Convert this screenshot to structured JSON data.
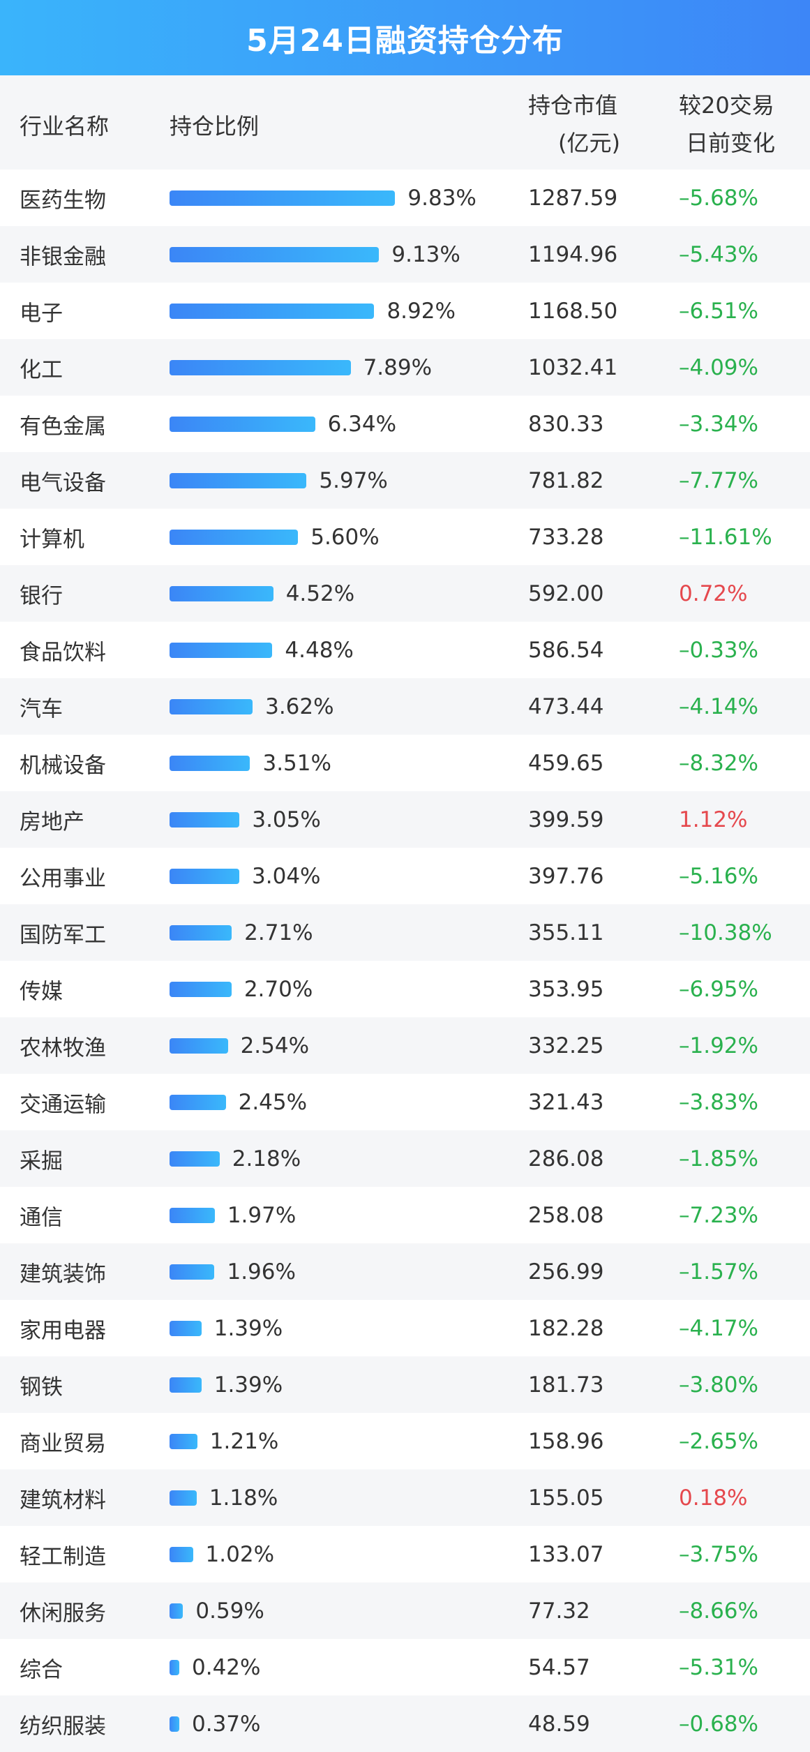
{
  "title": "5月24日融资持仓分布",
  "headers": {
    "name": "行业名称",
    "ratio": "持仓比例",
    "value_l1": "持仓市值",
    "value_l2": "(亿元)",
    "change_l1": "较20交易",
    "change_l2": "日前变化"
  },
  "colors": {
    "bar_start": "#3b86f6",
    "bar_end": "#3ab8fb",
    "negative": "#2ab14e",
    "positive": "#e5484d"
  },
  "rows": [
    {
      "name": "医药生物",
      "ratio": 9.83,
      "ratio_label": "9.83%",
      "value": "1287.59",
      "change": "–5.68%"
    },
    {
      "name": "非银金融",
      "ratio": 9.13,
      "ratio_label": "9.13%",
      "value": "1194.96",
      "change": "–5.43%"
    },
    {
      "name": "电子",
      "ratio": 8.92,
      "ratio_label": "8.92%",
      "value": "1168.50",
      "change": "–6.51%"
    },
    {
      "name": "化工",
      "ratio": 7.89,
      "ratio_label": "7.89%",
      "value": "1032.41",
      "change": "–4.09%"
    },
    {
      "name": "有色金属",
      "ratio": 6.34,
      "ratio_label": "6.34%",
      "value": "830.33",
      "change": "–3.34%"
    },
    {
      "name": "电气设备",
      "ratio": 5.97,
      "ratio_label": "5.97%",
      "value": "781.82",
      "change": "–7.77%"
    },
    {
      "name": "计算机",
      "ratio": 5.6,
      "ratio_label": "5.60%",
      "value": "733.28",
      "change": "–11.61%"
    },
    {
      "name": "银行",
      "ratio": 4.52,
      "ratio_label": "4.52%",
      "value": "592.00",
      "change": "0.72%"
    },
    {
      "name": "食品饮料",
      "ratio": 4.48,
      "ratio_label": "4.48%",
      "value": "586.54",
      "change": "–0.33%"
    },
    {
      "name": "汽车",
      "ratio": 3.62,
      "ratio_label": "3.62%",
      "value": "473.44",
      "change": "–4.14%"
    },
    {
      "name": "机械设备",
      "ratio": 3.51,
      "ratio_label": "3.51%",
      "value": "459.65",
      "change": "–8.32%"
    },
    {
      "name": "房地产",
      "ratio": 3.05,
      "ratio_label": "3.05%",
      "value": "399.59",
      "change": "1.12%"
    },
    {
      "name": "公用事业",
      "ratio": 3.04,
      "ratio_label": "3.04%",
      "value": "397.76",
      "change": "–5.16%"
    },
    {
      "name": "国防军工",
      "ratio": 2.71,
      "ratio_label": "2.71%",
      "value": "355.11",
      "change": "–10.38%"
    },
    {
      "name": "传媒",
      "ratio": 2.7,
      "ratio_label": "2.70%",
      "value": "353.95",
      "change": "–6.95%"
    },
    {
      "name": "农林牧渔",
      "ratio": 2.54,
      "ratio_label": "2.54%",
      "value": "332.25",
      "change": "–1.92%"
    },
    {
      "name": "交通运输",
      "ratio": 2.45,
      "ratio_label": "2.45%",
      "value": "321.43",
      "change": "–3.83%"
    },
    {
      "name": "采掘",
      "ratio": 2.18,
      "ratio_label": "2.18%",
      "value": "286.08",
      "change": "–1.85%"
    },
    {
      "name": "通信",
      "ratio": 1.97,
      "ratio_label": "1.97%",
      "value": "258.08",
      "change": "–7.23%"
    },
    {
      "name": "建筑装饰",
      "ratio": 1.96,
      "ratio_label": "1.96%",
      "value": "256.99",
      "change": "–1.57%"
    },
    {
      "name": "家用电器",
      "ratio": 1.39,
      "ratio_label": "1.39%",
      "value": "182.28",
      "change": "–4.17%"
    },
    {
      "name": "钢铁",
      "ratio": 1.39,
      "ratio_label": "1.39%",
      "value": "181.73",
      "change": "–3.80%"
    },
    {
      "name": "商业贸易",
      "ratio": 1.21,
      "ratio_label": "1.21%",
      "value": "158.96",
      "change": "–2.65%"
    },
    {
      "name": "建筑材料",
      "ratio": 1.18,
      "ratio_label": "1.18%",
      "value": "155.05",
      "change": "0.18%"
    },
    {
      "name": "轻工制造",
      "ratio": 1.02,
      "ratio_label": "1.02%",
      "value": "133.07",
      "change": "–3.75%"
    },
    {
      "name": "休闲服务",
      "ratio": 0.59,
      "ratio_label": "0.59%",
      "value": "77.32",
      "change": "–8.66%"
    },
    {
      "name": "综合",
      "ratio": 0.42,
      "ratio_label": "0.42%",
      "value": "54.57",
      "change": "–5.31%"
    },
    {
      "name": "纺织服装",
      "ratio": 0.37,
      "ratio_label": "0.37%",
      "value": "48.59",
      "change": "–0.68%"
    }
  ]
}
